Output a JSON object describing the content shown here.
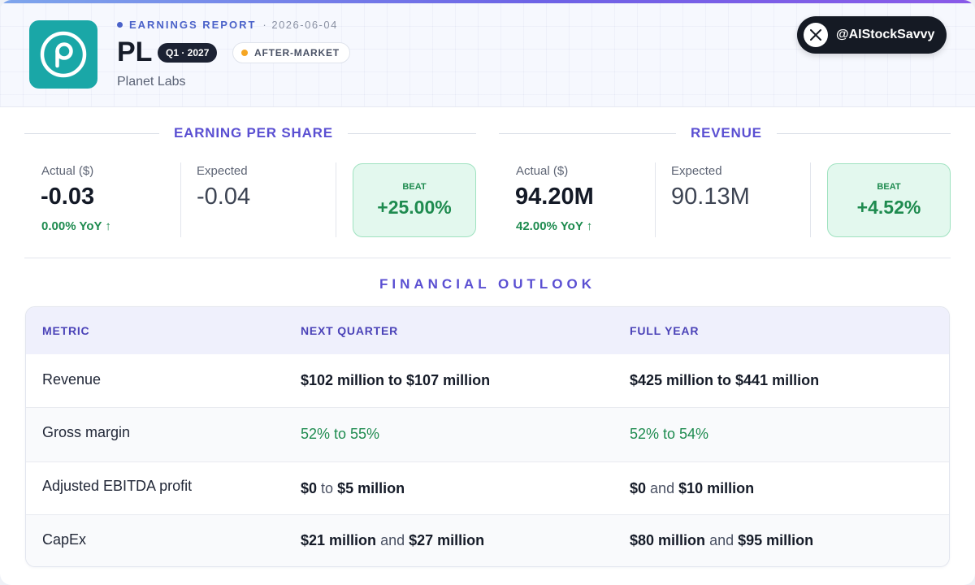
{
  "header": {
    "kicker": "EARNINGS REPORT",
    "date": "· 2026-06-04",
    "ticker": "PL",
    "quarter_badge": "Q1 · 2027",
    "session_badge": "AFTER-MARKET",
    "company": "Planet Labs",
    "handle": "@AIStockSavvy",
    "logo_letter": "p",
    "colors": {
      "logo_bg": "#1aa7a7",
      "accent": "#5a4fd2",
      "positive": "#1e8b4f",
      "session_dot": "#f5a623"
    }
  },
  "eps": {
    "title": "EARNING PER SHARE",
    "actual_label": "Actual ($)",
    "actual_value": "-0.03",
    "yoy": "0.00% YoY ↑",
    "expected_label": "Expected",
    "expected_value": "-0.04",
    "beat_label": "BEAT",
    "beat_value": "+25.00%"
  },
  "revenue": {
    "title": "REVENUE",
    "actual_label": "Actual ($)",
    "actual_value": "94.20M",
    "yoy": "42.00% YoY ↑",
    "expected_label": "Expected",
    "expected_value": "90.13M",
    "beat_label": "BEAT",
    "beat_value": "+4.52%"
  },
  "outlook": {
    "title": "FINANCIAL OUTLOOK",
    "headers": [
      "METRIC",
      "NEXT QUARTER",
      "FULL YEAR"
    ],
    "rows": [
      {
        "metric": "Revenue",
        "nq": [
          "$102 million to $107 million"
        ],
        "fy": [
          "$425 million to $441 million"
        ]
      },
      {
        "metric": "Gross margin",
        "nq": [
          "52% to 55%"
        ],
        "fy": [
          "52% to 54%"
        ]
      },
      {
        "metric": "Adjusted EBITDA profit",
        "nq": [
          "$0",
          "to",
          "$5 million"
        ],
        "fy": [
          "$0",
          "and",
          "$10 million"
        ]
      },
      {
        "metric": "CapEx",
        "nq": [
          "$21 million",
          "and",
          "$27 million"
        ],
        "fy": [
          "$80 million",
          "and",
          "$95 million"
        ]
      }
    ]
  }
}
